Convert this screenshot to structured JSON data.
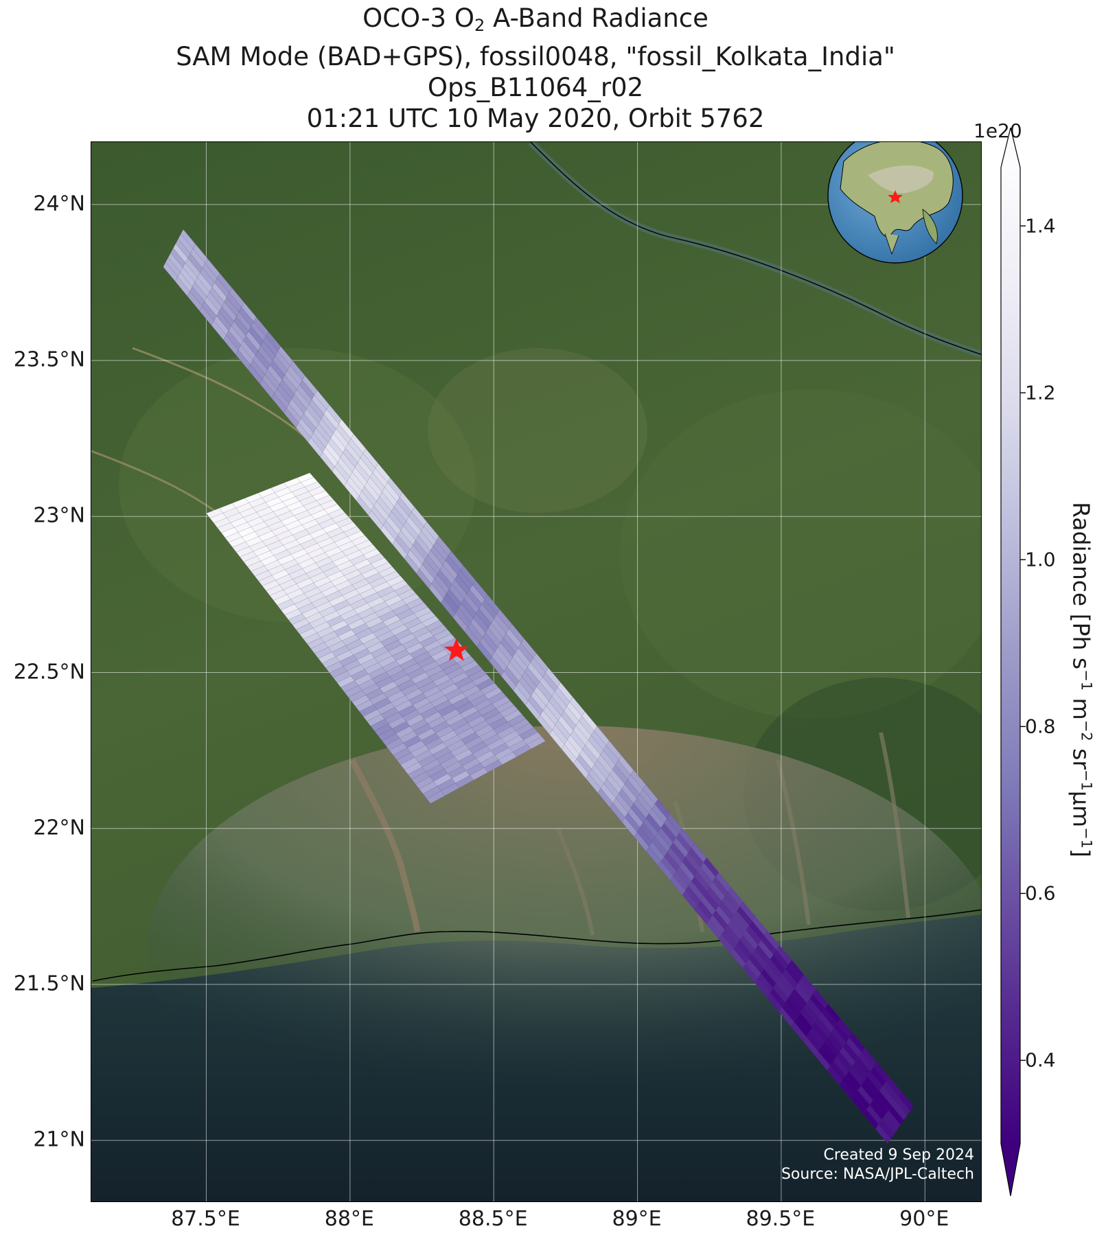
{
  "title": {
    "line1_prefix": "OCO-3 O",
    "line1_sub": "2",
    "line1_suffix": " A-Band Radiance",
    "line2": "SAM Mode (BAD+GPS), fossil0048, \"fossil_Kolkata_India\"",
    "line3": "Ops_B11064_r02",
    "line4": "01:21 UTC 10 May 2020, Orbit 5762"
  },
  "map": {
    "extent": {
      "lon_min": 87.1,
      "lon_max": 90.2,
      "lat_min": 20.8,
      "lat_max": 24.2
    },
    "lat_ticks": [
      {
        "value": 21.0,
        "label": "21°N"
      },
      {
        "value": 21.5,
        "label": "21.5°N"
      },
      {
        "value": 22.0,
        "label": "22°N"
      },
      {
        "value": 22.5,
        "label": "22.5°N"
      },
      {
        "value": 23.0,
        "label": "23°N"
      },
      {
        "value": 23.5,
        "label": "23.5°N"
      },
      {
        "value": 24.0,
        "label": "24°N"
      }
    ],
    "lon_ticks": [
      {
        "value": 87.5,
        "label": "87.5°E"
      },
      {
        "value": 88.0,
        "label": "88°E"
      },
      {
        "value": 88.5,
        "label": "88.5°E"
      },
      {
        "value": 89.0,
        "label": "89°E"
      },
      {
        "value": 89.5,
        "label": "89.5°E"
      },
      {
        "value": 90.0,
        "label": "90°E"
      }
    ],
    "grid": true,
    "target_marker": {
      "lon": 88.37,
      "lat": 22.57,
      "color": "#ff1a1a",
      "icon": "star-icon"
    },
    "inset_globe": {
      "placement": "top-right",
      "icon": "globe-icon"
    },
    "credit_line1": "Created 9 Sep 2024",
    "credit_line2": "Source: NASA/JPL-Caltech"
  },
  "colorbar": {
    "exponent_label": "1e20",
    "label_prefix": "Radiance [Ph s",
    "min": 0.3,
    "max": 1.47,
    "ticks": [
      {
        "value": 0.4,
        "label": "0.4"
      },
      {
        "value": 0.6,
        "label": "0.6"
      },
      {
        "value": 0.8,
        "label": "0.8"
      },
      {
        "value": 1.0,
        "label": "1.0"
      },
      {
        "value": 1.2,
        "label": "1.2"
      },
      {
        "value": 1.4,
        "label": "1.4"
      }
    ],
    "colors": [
      "#3f007d",
      "#54278f",
      "#6a51a3",
      "#807dba",
      "#9e9ac8",
      "#bcbddc",
      "#dadaeb",
      "#efedf5",
      "#fcfbfd"
    ]
  },
  "swaths": [
    {
      "name": "long-swath",
      "corners": [
        [
          87.42,
          23.92
        ],
        [
          87.35,
          23.8
        ],
        [
          89.87,
          20.99
        ],
        [
          89.96,
          21.11
        ]
      ],
      "profile": [
        1.0,
        0.95,
        0.85,
        0.88,
        1.2,
        1.15,
        1.05,
        0.8,
        0.85,
        1.0,
        1.15,
        0.92,
        0.7,
        0.55,
        0.5,
        0.4,
        0.36,
        0.34,
        0.34
      ]
    },
    {
      "name": "short-swath",
      "corners": [
        [
          87.86,
          23.14
        ],
        [
          87.5,
          23.01
        ],
        [
          88.28,
          22.08
        ],
        [
          88.68,
          22.28
        ]
      ],
      "profile": [
        1.42,
        1.38,
        1.32,
        1.2,
        1.05,
        0.95,
        0.88,
        0.9,
        0.92
      ]
    }
  ]
}
